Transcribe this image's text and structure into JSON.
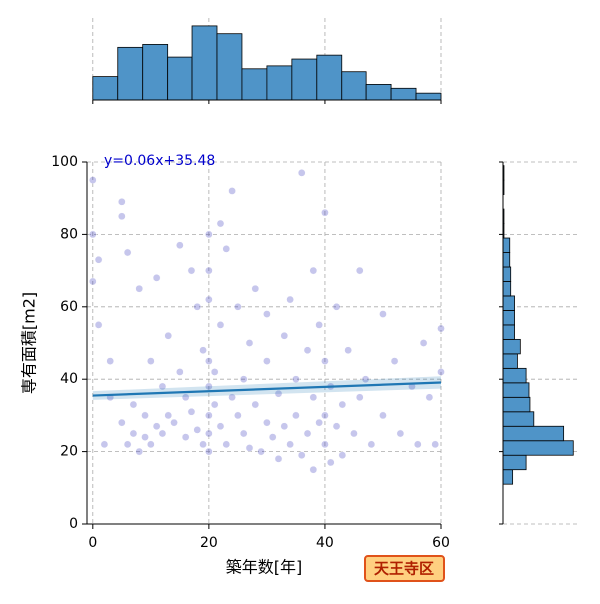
{
  "chart_data": [
    {
      "type": "scatter",
      "xlabel": "築年数[年]",
      "ylabel": "専有面積[m2]",
      "annotation": "y=0.06x+35.48",
      "xlim": [
        -1,
        60
      ],
      "ylim": [
        0,
        100
      ],
      "xticks": [
        0,
        20,
        40,
        60
      ],
      "yticks": [
        0,
        20,
        40,
        60,
        80,
        100
      ],
      "grid": true,
      "series": [
        {
          "color": "#3333bb",
          "x": [
            0,
            0,
            0,
            1,
            1,
            2,
            3,
            3,
            5,
            5,
            5,
            6,
            6,
            7,
            7,
            8,
            8,
            9,
            9,
            10,
            10,
            11,
            11,
            12,
            12,
            13,
            13,
            14,
            15,
            15,
            16,
            16,
            17,
            17,
            18,
            18,
            19,
            19,
            20,
            20,
            20,
            20,
            20,
            20,
            20,
            20,
            21,
            21,
            22,
            22,
            22,
            23,
            23,
            24,
            24,
            25,
            25,
            26,
            26,
            27,
            27,
            28,
            28,
            29,
            30,
            30,
            30,
            31,
            32,
            32,
            33,
            33,
            34,
            34,
            35,
            35,
            36,
            36,
            37,
            37,
            38,
            38,
            38,
            39,
            39,
            40,
            40,
            40,
            40,
            41,
            41,
            42,
            42,
            43,
            43,
            44,
            45,
            46,
            46,
            47,
            48,
            50,
            50,
            52,
            53,
            55,
            56,
            57,
            58,
            59,
            60,
            60
          ],
          "values": [
            95,
            80,
            67,
            73,
            55,
            22,
            45,
            35,
            89,
            85,
            28,
            75,
            22,
            25,
            33,
            20,
            65,
            24,
            30,
            22,
            45,
            68,
            27,
            25,
            38,
            52,
            30,
            28,
            77,
            42,
            24,
            35,
            70,
            31,
            26,
            60,
            22,
            48,
            80,
            70,
            62,
            45,
            38,
            30,
            25,
            20,
            42,
            33,
            83,
            55,
            27,
            76,
            22,
            92,
            35,
            30,
            60,
            25,
            40,
            21,
            50,
            33,
            65,
            20,
            28,
            45,
            58,
            24,
            36,
            18,
            52,
            27,
            22,
            62,
            40,
            30,
            97,
            19,
            48,
            25,
            70,
            35,
            15,
            55,
            28,
            86,
            45,
            30,
            22,
            38,
            17,
            60,
            27,
            33,
            19,
            48,
            25,
            70,
            35,
            40,
            22,
            30,
            58,
            45,
            25,
            38,
            22,
            50,
            35,
            22,
            54,
            42
          ]
        }
      ],
      "regression": {
        "color": "#1f77b4",
        "x": [
          0,
          60
        ],
        "values": [
          35.48,
          39.08
        ],
        "ci_lower": [
          34.3,
          37.4
        ],
        "ci_upper": [
          36.7,
          40.8
        ]
      }
    },
    {
      "type": "histogram",
      "orientation": "vertical",
      "color": "#4f94c8",
      "bins": [
        0,
        4.3,
        8.6,
        12.9,
        17.1,
        21.4,
        25.7,
        30,
        34.3,
        38.6,
        42.9,
        47.1,
        51.4,
        55.7,
        60
      ],
      "counts": [
        24,
        54,
        57,
        44,
        76,
        68,
        32,
        35,
        42,
        46,
        29,
        16,
        12,
        7
      ],
      "ylim": [
        0,
        80
      ],
      "grid": true
    },
    {
      "type": "histogram",
      "orientation": "horizontal",
      "color": "#4f94c8",
      "bins": [
        11,
        15,
        19,
        23,
        27,
        31,
        35,
        39,
        43,
        47,
        51,
        55,
        59,
        63,
        67,
        71,
        75,
        79,
        83,
        87,
        91,
        95,
        99
      ],
      "counts": [
        10,
        24,
        73,
        63,
        32,
        28,
        27,
        24,
        15,
        18,
        12,
        12,
        12,
        8,
        8,
        7,
        7,
        1,
        1,
        0,
        1,
        1
      ],
      "xlim": [
        0,
        80
      ],
      "grid": true
    }
  ],
  "badge": "天王寺区"
}
